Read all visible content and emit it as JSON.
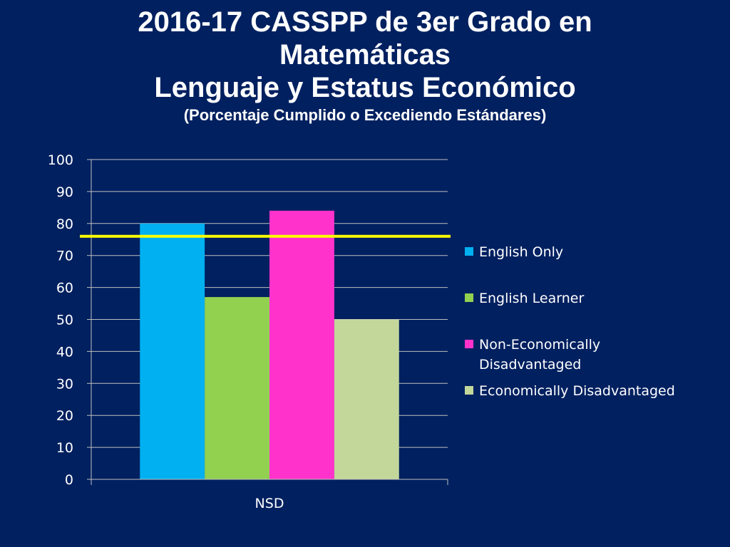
{
  "title": {
    "line1": "2016-17 CASSPP de 3er Grado en",
    "line2": "Matemáticas",
    "line3": "Lenguaje y Estatus Económico",
    "subtitle": "(Porcentaje Cumplido o Excediendo Estándares)"
  },
  "chart_data": {
    "type": "bar",
    "categories": [
      "NSD"
    ],
    "series": [
      {
        "name": "English Only",
        "values": [
          80
        ],
        "color": "#00B0F0"
      },
      {
        "name": "English Learner",
        "values": [
          57
        ],
        "color": "#92D050"
      },
      {
        "name": "Non-Economically Disadvantaged",
        "values": [
          84
        ],
        "color": "#FF33CC"
      },
      {
        "name": "Economically Disadvantaged",
        "values": [
          50
        ],
        "color": "#C4D79B"
      }
    ],
    "ylim": [
      0,
      100
    ],
    "yticks": [
      0,
      10,
      20,
      30,
      40,
      50,
      60,
      70,
      80,
      90,
      100
    ],
    "grid": true,
    "legend": "right",
    "reference_line": {
      "value": 76,
      "color": "#FFFF00"
    },
    "gridline_color": "#BFBFBF"
  }
}
